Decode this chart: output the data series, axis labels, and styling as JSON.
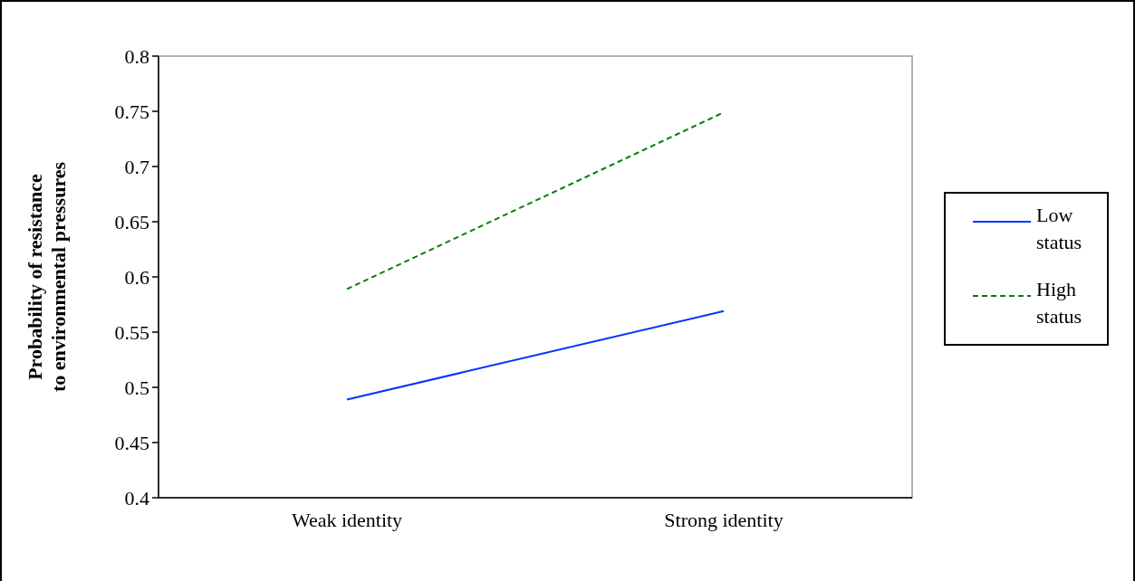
{
  "chart_data": {
    "type": "line",
    "ylabel": "Probability of resistance to environmental pressures",
    "categories": [
      "Weak identity",
      "Strong identity"
    ],
    "series": [
      {
        "name": "Low status",
        "color": "#0033ff",
        "values": [
          0.489,
          0.569
        ],
        "line_style": "solid"
      },
      {
        "name": "High status",
        "color": "#008000",
        "values": [
          0.589,
          0.749
        ],
        "line_style": "dashed"
      }
    ],
    "ylim": [
      0.4,
      0.8
    ],
    "yticks": [
      0.4,
      0.45,
      0.5,
      0.55,
      0.6,
      0.65,
      0.7,
      0.75,
      0.8
    ],
    "legend": "right",
    "grid": false,
    "marker": "none"
  }
}
